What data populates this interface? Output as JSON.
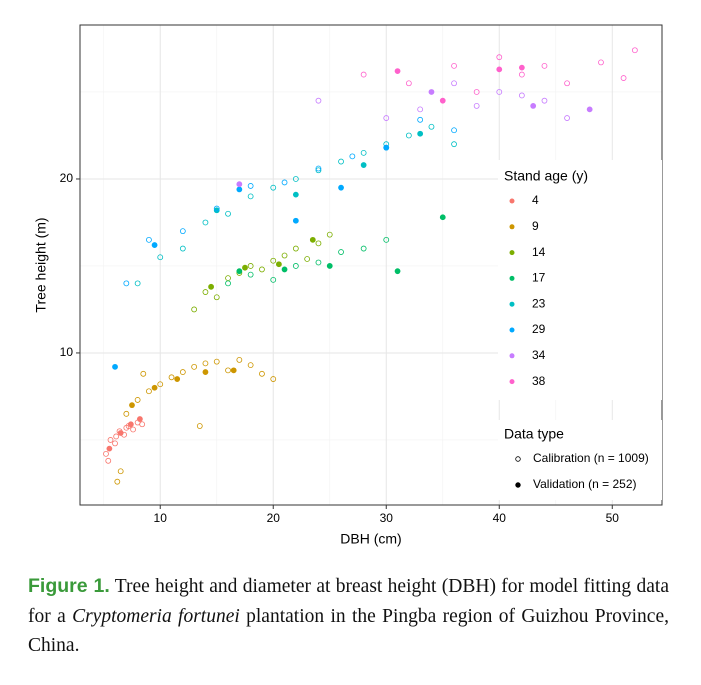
{
  "chart_data": {
    "type": "scatter",
    "x_label": "DBH (cm)",
    "y_label": "Tree height (m)",
    "xlim": [
      2.9,
      54.4
    ],
    "ylim": [
      1.26,
      28.85
    ],
    "xticks": [
      10,
      20,
      30,
      40,
      50
    ],
    "yticks": [
      10,
      20
    ],
    "x_minor_grid": [
      5,
      15,
      25,
      35,
      45
    ],
    "y_minor_grid": [
      5,
      15,
      25
    ],
    "grid": true,
    "legend_title": "Stand age (y)",
    "shape_legend": {
      "title": "Data type",
      "entries": [
        "Calibration (n = 1009)",
        "Validation (n = 252)"
      ]
    },
    "series": [
      {
        "name": "4",
        "color": "#F8766D",
        "calibration": {
          "x": [
            5.2,
            5.6,
            6.0,
            6.4,
            6.8,
            7.2,
            7.6,
            8.0,
            8.4,
            5.4,
            6.1,
            7.0
          ],
          "y": [
            4.2,
            5.0,
            4.8,
            5.5,
            5.3,
            5.8,
            5.6,
            6.0,
            5.9,
            3.8,
            5.2,
            5.7
          ]
        },
        "validation": {
          "x": [
            5.5,
            6.5,
            7.4,
            8.2
          ],
          "y": [
            4.5,
            5.4,
            5.9,
            6.2
          ]
        }
      },
      {
        "name": "9",
        "color": "#CD9600",
        "calibration": {
          "x": [
            6.2,
            7,
            8,
            9,
            10,
            11,
            12,
            13,
            14,
            15,
            16,
            17,
            18,
            19,
            20,
            6.5,
            8.5,
            13.5
          ],
          "y": [
            2.6,
            6.5,
            7.3,
            7.8,
            8.2,
            8.6,
            8.9,
            9.2,
            9.4,
            9.5,
            9.0,
            9.6,
            9.3,
            8.8,
            8.5,
            3.2,
            8.8,
            5.8
          ]
        },
        "validation": {
          "x": [
            7.5,
            9.5,
            11.5,
            14,
            16.5
          ],
          "y": [
            7.0,
            8.0,
            8.5,
            8.9,
            9.0
          ]
        }
      },
      {
        "name": "14",
        "color": "#7CAE00",
        "calibration": {
          "x": [
            13,
            14,
            15,
            16,
            17,
            18,
            19,
            20,
            21,
            22,
            23,
            24,
            25
          ],
          "y": [
            12.5,
            13.5,
            13.2,
            14.3,
            14.6,
            15.0,
            14.8,
            15.3,
            15.6,
            16.0,
            15.4,
            16.3,
            16.8
          ]
        },
        "validation": {
          "x": [
            14.5,
            17.5,
            20.5,
            23.5
          ],
          "y": [
            13.8,
            14.9,
            15.1,
            16.5
          ]
        }
      },
      {
        "name": "17",
        "color": "#00BE67",
        "calibration": {
          "x": [
            16,
            18,
            20,
            22,
            24,
            26,
            28,
            30
          ],
          "y": [
            14,
            14.5,
            14.2,
            15,
            15.2,
            15.8,
            16,
            16.5
          ]
        },
        "validation": {
          "x": [
            17,
            21,
            25,
            31,
            35
          ],
          "y": [
            14.7,
            14.8,
            15.0,
            14.7,
            17.8
          ]
        }
      },
      {
        "name": "23",
        "color": "#00BFC4",
        "calibration": {
          "x": [
            8,
            10,
            12,
            14,
            16,
            18,
            20,
            22,
            24,
            26,
            28,
            30,
            32,
            34,
            36
          ],
          "y": [
            14,
            15.5,
            16,
            17.5,
            18,
            19,
            19.5,
            20,
            20.5,
            21,
            21.5,
            22,
            22.5,
            23,
            22
          ]
        },
        "validation": {
          "x": [
            15,
            22,
            28,
            33
          ],
          "y": [
            18.2,
            19.1,
            20.8,
            22.6
          ]
        }
      },
      {
        "name": "29",
        "color": "#00A9FF",
        "calibration": {
          "x": [
            7,
            9,
            12,
            15,
            18,
            21,
            24,
            27,
            30,
            33,
            36
          ],
          "y": [
            14,
            16.5,
            17,
            18.3,
            19.6,
            19.8,
            20.6,
            21.3,
            21.8,
            23.4,
            22.8
          ]
        },
        "validation": {
          "x": [
            6,
            9.5,
            17,
            22,
            26,
            30
          ],
          "y": [
            9.2,
            16.2,
            19.4,
            17.6,
            19.5,
            21.8
          ]
        }
      },
      {
        "name": "34",
        "color": "#C77CFF",
        "calibration": {
          "x": [
            24,
            30,
            33,
            36,
            38,
            40,
            42,
            44,
            46
          ],
          "y": [
            24.5,
            23.5,
            24,
            25.5,
            24.2,
            25,
            24.8,
            24.5,
            23.5
          ]
        },
        "validation": {
          "x": [
            17,
            34,
            43,
            48
          ],
          "y": [
            19.7,
            25,
            24.2,
            24
          ]
        }
      },
      {
        "name": "38",
        "color": "#FF61CC",
        "calibration": {
          "x": [
            28,
            32,
            36,
            38,
            40,
            42,
            44,
            46,
            49,
            51,
            52
          ],
          "y": [
            26,
            25.5,
            26.5,
            25,
            27,
            26,
            26.5,
            25.5,
            26.7,
            25.8,
            27.4
          ]
        },
        "validation": {
          "x": [
            31,
            35,
            40,
            42
          ],
          "y": [
            26.2,
            24.5,
            26.3,
            26.4
          ]
        }
      }
    ]
  },
  "caption": {
    "label": "Figure 1.",
    "parts": [
      "Tree height and diameter at breast height (DBH) for model fitting data for a ",
      "Cryptomeria fortunei",
      " plantation in the Pingba region of Guizhou Province, China."
    ]
  }
}
